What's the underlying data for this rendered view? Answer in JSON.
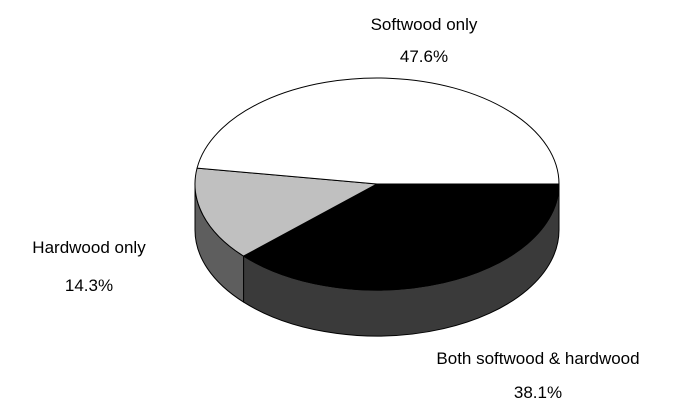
{
  "chart_data": {
    "type": "pie",
    "title": "",
    "three_d": true,
    "slices": [
      {
        "label": "Softwood only",
        "value": 47.6,
        "value_label": "47.6%",
        "color": "#ffffff",
        "side_color": "#ffffff"
      },
      {
        "label": "Both softwood & hardwood",
        "value": 38.1,
        "value_label": "38.1%",
        "color": "#000000",
        "side_color": "#3a3a3a"
      },
      {
        "label": "Hardwood only",
        "value": 14.3,
        "value_label": "14.3%",
        "color": "#c0c0c0",
        "side_color": "#5e5e5e"
      }
    ]
  }
}
